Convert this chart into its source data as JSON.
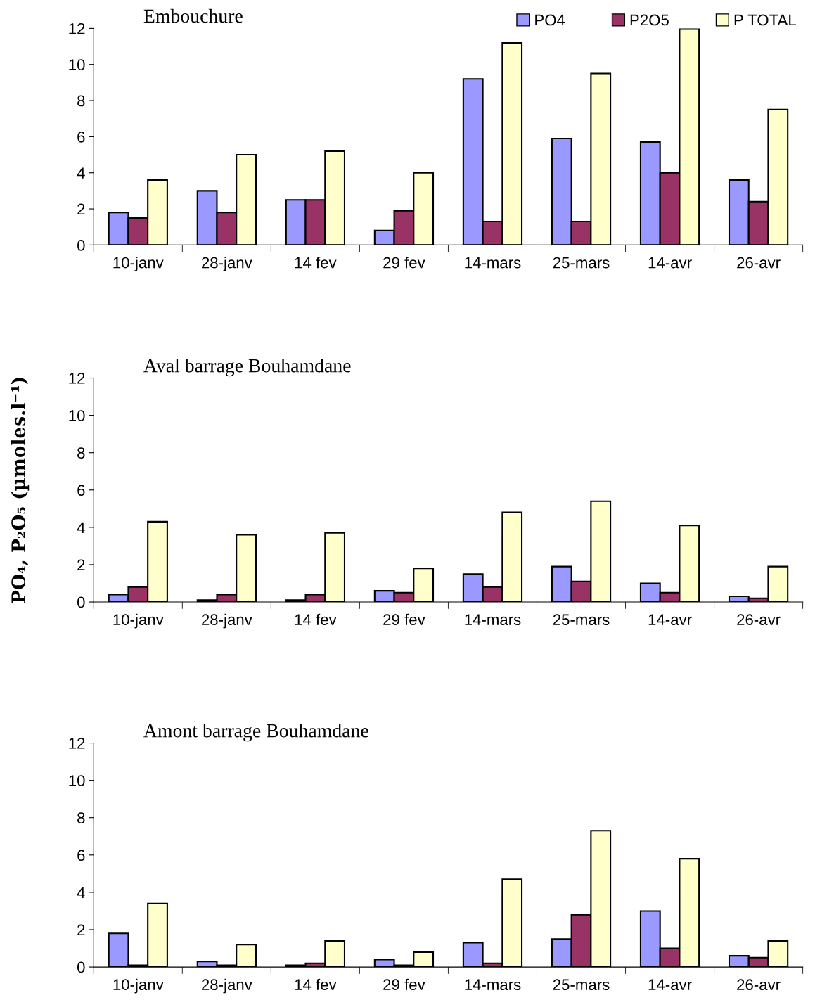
{
  "chart_data": [
    {
      "type": "bar",
      "title": "Embouchure",
      "categories": [
        "10-janv",
        "28-janv",
        "14 fev",
        "29 fev",
        "14-mars",
        "25-mars",
        "14-avr",
        "26-avr"
      ],
      "series": [
        {
          "name": "PO4",
          "color": "#9999ff",
          "values": [
            1.8,
            3.0,
            2.5,
            0.8,
            9.2,
            5.9,
            5.7,
            3.6
          ]
        },
        {
          "name": "P2O5",
          "color": "#993366",
          "values": [
            1.5,
            1.8,
            2.5,
            1.9,
            1.3,
            1.3,
            4.0,
            2.4
          ]
        },
        {
          "name": "P TOTAL",
          "color": "#ffffcc",
          "values": [
            3.6,
            5.0,
            5.2,
            4.0,
            11.2,
            9.5,
            12.0,
            7.5
          ]
        }
      ],
      "ylim": [
        0,
        12
      ],
      "yticks": [
        0,
        2,
        4,
        6,
        8,
        10,
        12
      ],
      "grid": false,
      "legend": "top right"
    },
    {
      "type": "bar",
      "title": "Aval barrage Bouhamdane",
      "ylabel": "PO₄, P₂O₅ (µmoles.l⁻¹)",
      "categories": [
        "10-janv",
        "28-janv",
        "14 fev",
        "29 fev",
        "14-mars",
        "25-mars",
        "14-avr",
        "26-avr"
      ],
      "series": [
        {
          "color": "#9999ff",
          "values": [
            0.4,
            0.1,
            0.1,
            0.6,
            1.5,
            1.9,
            1.0,
            0.3
          ]
        },
        {
          "color": "#993366",
          "values": [
            0.8,
            0.4,
            0.4,
            0.5,
            0.8,
            1.1,
            0.5,
            0.2
          ]
        },
        {
          "color": "#ffffcc",
          "values": [
            4.3,
            3.6,
            3.7,
            1.8,
            4.8,
            5.4,
            4.1,
            1.9
          ]
        }
      ],
      "ylim": [
        0,
        12
      ],
      "yticks": [
        0,
        2,
        4,
        6,
        8,
        10,
        12
      ],
      "grid": false
    },
    {
      "type": "bar",
      "title": "Amont barrage Bouhamdane",
      "categories": [
        "10-janv",
        "28-janv",
        "14 fev",
        "29 fev",
        "14-mars",
        "25-mars",
        "14-avr",
        "26-avr"
      ],
      "series": [
        {
          "color": "#9999ff",
          "values": [
            1.8,
            0.3,
            0.1,
            0.4,
            1.3,
            1.5,
            3.0,
            0.6
          ]
        },
        {
          "color": "#993366",
          "values": [
            0.1,
            0.1,
            0.2,
            0.1,
            0.2,
            2.8,
            1.0,
            0.5
          ]
        },
        {
          "color": "#ffffcc",
          "values": [
            3.4,
            1.2,
            1.4,
            0.8,
            4.7,
            7.3,
            5.8,
            1.4
          ]
        }
      ],
      "ylim": [
        0,
        12
      ],
      "yticks": [
        0,
        2,
        4,
        6,
        8,
        10,
        12
      ],
      "grid": false
    }
  ]
}
